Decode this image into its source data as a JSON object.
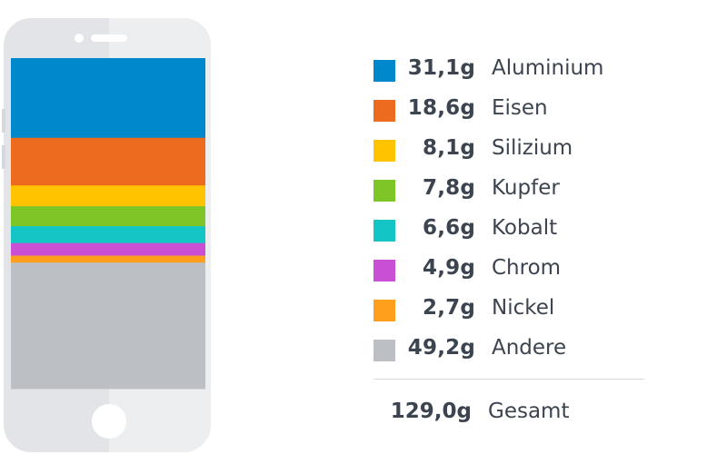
{
  "chart_data": {
    "type": "stacked-bar",
    "unit": "g",
    "series": [
      {
        "name": "Aluminium",
        "value": 31.1,
        "label": "31,1g",
        "color": "#0088cc"
      },
      {
        "name": "Eisen",
        "value": 18.6,
        "label": "18,6g",
        "color": "#ec6b1e"
      },
      {
        "name": "Silizium",
        "value": 8.1,
        "label": "8,1g",
        "color": "#ffc300"
      },
      {
        "name": "Kupfer",
        "value": 7.8,
        "label": "7,8g",
        "color": "#7ec628"
      },
      {
        "name": "Kobalt",
        "value": 6.6,
        "label": "6,6g",
        "color": "#13c5c5"
      },
      {
        "name": "Chrom",
        "value": 4.9,
        "label": "4,9g",
        "color": "#c94fd4"
      },
      {
        "name": "Nickel",
        "value": 2.7,
        "label": "2,7g",
        "color": "#ff9f1c"
      },
      {
        "name": "Andere",
        "value": 49.2,
        "label": "49,2g",
        "color": "#bcc0c5"
      }
    ],
    "total": {
      "value": 129.0,
      "label": "129,0g",
      "name": "Gesamt"
    }
  }
}
